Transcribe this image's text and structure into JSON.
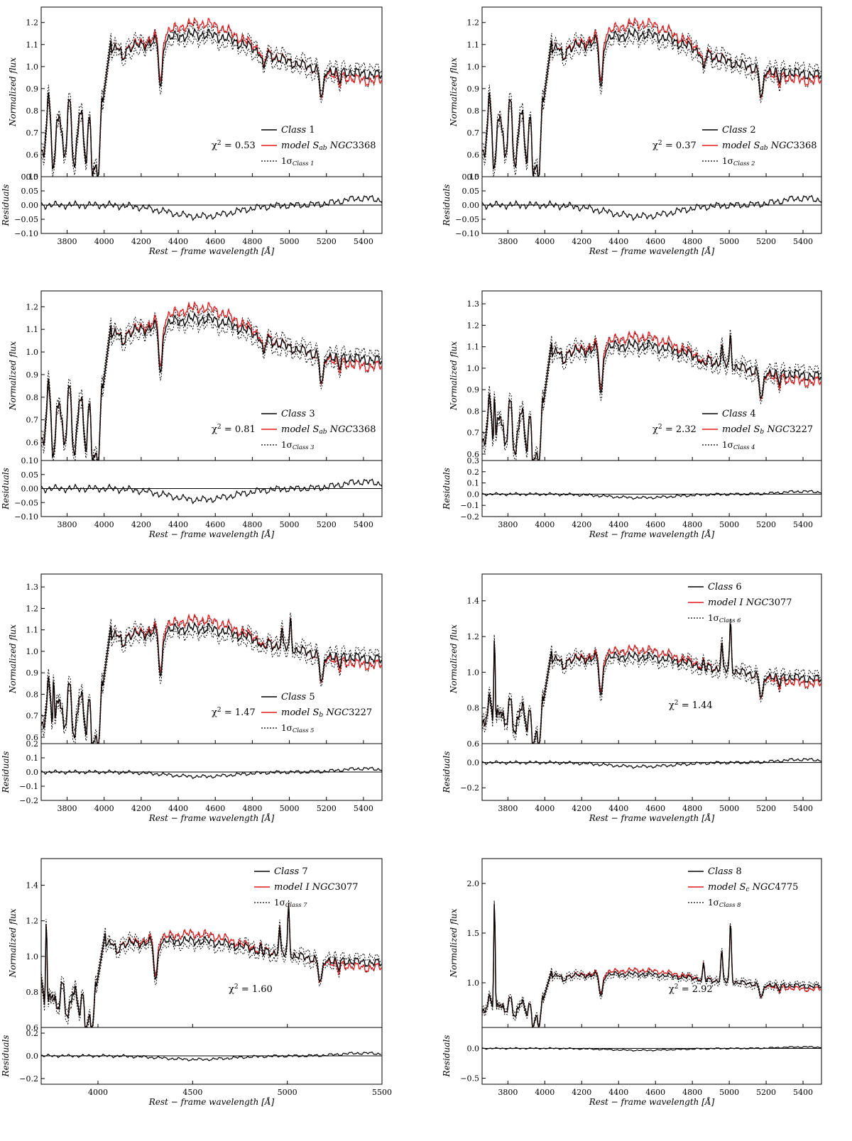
{
  "figure": {
    "flux_axis_label": "Normalized flux",
    "residual_axis_label": "Residuals",
    "x_axis_label": "Rest − frame wavelength [Å]"
  },
  "colors": {
    "observed": "#000000",
    "model": "#e41a1c",
    "sigma": "#000000"
  },
  "chart_data": [
    {
      "type": "line",
      "panel": 1,
      "title": "",
      "xlabel": "Rest − frame wavelength [Å]",
      "ylabel": "Normalized flux",
      "xlim": [
        3660,
        5500
      ],
      "ylim": [
        0.5,
        1.27
      ],
      "residual_ylim": [
        -0.1,
        0.1
      ],
      "xticks": [
        "3800",
        "4000",
        "4200",
        "4400",
        "4600",
        "4800",
        "5000",
        "5200",
        "5400"
      ],
      "yticks": [
        "0.5",
        "0.6",
        "0.7",
        "0.8",
        "0.9",
        "1.0",
        "1.1",
        "1.2"
      ],
      "residual_yticks": [
        "−0.10",
        "−0.05",
        "0.00",
        "0.05",
        "0.10"
      ],
      "legend": {
        "class_label": "Class 1",
        "model_label": "model S_ab NGC3368",
        "sigma_label": "1σ Class 1",
        "position": "center-right"
      },
      "chi2": "χ² = 0.53",
      "profile": "early",
      "emission": 0
    },
    {
      "type": "line",
      "panel": 2,
      "title": "",
      "xlabel": "Rest − frame wavelength [Å]",
      "ylabel": "Normalized flux",
      "xlim": [
        3660,
        5500
      ],
      "ylim": [
        0.5,
        1.27
      ],
      "residual_ylim": [
        -0.1,
        0.1
      ],
      "xticks": [
        "3800",
        "4000",
        "4200",
        "4400",
        "4600",
        "4800",
        "5000",
        "5200",
        "5400"
      ],
      "yticks": [
        "0.5",
        "0.6",
        "0.7",
        "0.8",
        "0.9",
        "1.0",
        "1.1",
        "1.2"
      ],
      "residual_yticks": [
        "−0.10",
        "−0.05",
        "0.00",
        "0.05",
        "0.10"
      ],
      "legend": {
        "class_label": "Class 2",
        "model_label": "model S_ab NGC3368",
        "sigma_label": "1σ Class 2",
        "position": "center-right"
      },
      "chi2": "χ² = 0.37",
      "profile": "early",
      "emission": 0
    },
    {
      "type": "line",
      "panel": 3,
      "title": "",
      "xlabel": "Rest − frame wavelength [Å]",
      "ylabel": "Normalized flux",
      "xlim": [
        3660,
        5500
      ],
      "ylim": [
        0.52,
        1.27
      ],
      "residual_ylim": [
        -0.1,
        0.1
      ],
      "xticks": [
        "3800",
        "4000",
        "4200",
        "4400",
        "4600",
        "4800",
        "5000",
        "5200",
        "5400"
      ],
      "yticks": [
        "0.6",
        "0.7",
        "0.8",
        "0.9",
        "1.0",
        "1.1",
        "1.2"
      ],
      "residual_yticks": [
        "−0.10",
        "−0.05",
        "0.00",
        "0.05",
        "0.10"
      ],
      "legend": {
        "class_label": "Class 3",
        "model_label": "model S_ab NGC3368",
        "sigma_label": "1σ Class 3",
        "position": "center-right"
      },
      "chi2": "χ² = 0.81",
      "profile": "early",
      "emission": 0
    },
    {
      "type": "line",
      "panel": 4,
      "title": "",
      "xlabel": "Rest − frame wavelength [Å]",
      "ylabel": "Normalized flux",
      "xlim": [
        3660,
        5500
      ],
      "ylim": [
        0.57,
        1.36
      ],
      "residual_ylim": [
        -0.2,
        0.3
      ],
      "xticks": [
        "3800",
        "4000",
        "4200",
        "4400",
        "4600",
        "4800",
        "5000",
        "5200",
        "5400"
      ],
      "yticks": [
        "0.6",
        "0.7",
        "0.8",
        "0.9",
        "1.0",
        "1.1",
        "1.2",
        "1.3"
      ],
      "residual_yticks": [
        "−0.2",
        "−0.1",
        "0.0",
        "0.1",
        "0.2",
        "0.3"
      ],
      "legend": {
        "class_label": "Class 4",
        "model_label": "model S_b NGC3227",
        "sigma_label": "1σ Class 4",
        "position": "center-right"
      },
      "chi2": "χ² = 2.32",
      "profile": "mid",
      "emission": 1
    },
    {
      "type": "line",
      "panel": 5,
      "title": "",
      "xlabel": "Rest − frame wavelength [Å]",
      "ylabel": "Normalized flux",
      "xlim": [
        3660,
        5500
      ],
      "ylim": [
        0.57,
        1.36
      ],
      "residual_ylim": [
        -0.2,
        0.2
      ],
      "xticks": [
        "3800",
        "4000",
        "4200",
        "4400",
        "4600",
        "4800",
        "5000",
        "5200",
        "5400"
      ],
      "yticks": [
        "0.6",
        "0.7",
        "0.8",
        "0.9",
        "1.0",
        "1.1",
        "1.2",
        "1.3"
      ],
      "residual_yticks": [
        "−0.2",
        "−0.1",
        "0.0",
        "0.1",
        "0.2"
      ],
      "legend": {
        "class_label": "Class 5",
        "model_label": "model S_b NGC3227",
        "sigma_label": "1σ Class 5",
        "position": "center-right"
      },
      "chi2": "χ² = 1.47",
      "profile": "mid",
      "emission": 1
    },
    {
      "type": "line",
      "panel": 6,
      "title": "",
      "xlabel": "Rest − frame wavelength [Å]",
      "ylabel": "Normalized flux",
      "xlim": [
        3660,
        5500
      ],
      "ylim": [
        0.6,
        1.55
      ],
      "residual_ylim": [
        -0.3,
        0.15
      ],
      "xticks": [
        "3800",
        "4000",
        "4200",
        "4400",
        "4600",
        "4800",
        "5000",
        "5200",
        "5400"
      ],
      "yticks": [
        "0.6",
        "0.8",
        "1.0",
        "1.2",
        "1.4"
      ],
      "residual_yticks": [
        "−0.2",
        "0.0"
      ],
      "legend": {
        "class_label": "Class 6",
        "model_label": "model I NGC3077",
        "sigma_label": "1σ Class 6",
        "position": "top-right"
      },
      "chi2": "χ² = 1.44",
      "profile": "late",
      "emission": 2
    },
    {
      "type": "line",
      "panel": 7,
      "title": "",
      "xlabel": "Rest − frame wavelength [Å]",
      "ylabel": "Normalized flux",
      "xlim": [
        3700,
        5500
      ],
      "ylim": [
        0.6,
        1.55
      ],
      "residual_ylim": [
        -0.25,
        0.25
      ],
      "xticks": [
        "4000",
        "4500",
        "5000",
        "5500"
      ],
      "yticks": [
        "0.6",
        "0.8",
        "1.0",
        "1.2",
        "1.4"
      ],
      "residual_yticks": [
        "−0.2",
        "0.0",
        "0.2"
      ],
      "legend": {
        "class_label": "Class 7",
        "model_label": "model I NGC3077",
        "sigma_label": "1σ Class 7",
        "position": "top-right"
      },
      "chi2": "χ² = 1.60",
      "profile": "late",
      "emission": 2
    },
    {
      "type": "line",
      "panel": 8,
      "title": "",
      "xlabel": "Rest − frame wavelength [Å]",
      "ylabel": "Normalized flux",
      "xlim": [
        3660,
        5500
      ],
      "ylim": [
        0.55,
        2.25
      ],
      "residual_ylim": [
        -0.6,
        0.35
      ],
      "xticks": [
        "3800",
        "4000",
        "4200",
        "4400",
        "4600",
        "4800",
        "5000",
        "5200",
        "5400"
      ],
      "yticks": [
        "1.0",
        "1.5",
        "2.0"
      ],
      "residual_yticks": [
        "−0.5",
        "0.0"
      ],
      "legend": {
        "class_label": "Class 8",
        "model_label": "model S_c NGC4775",
        "sigma_label": "1σ Class 8",
        "position": "top-right"
      },
      "chi2": "χ² = 2.92",
      "profile": "late",
      "emission": 3
    }
  ]
}
